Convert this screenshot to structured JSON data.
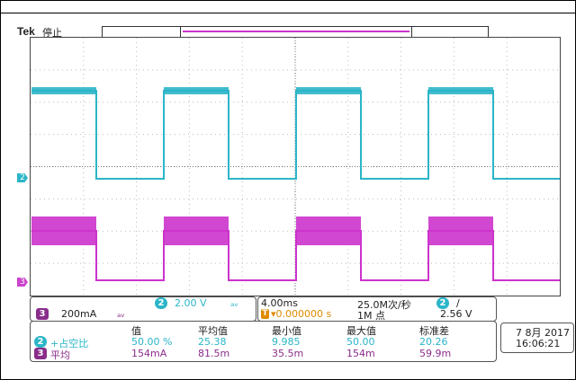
{
  "header": {
    "brand": "Tek",
    "status": "停止"
  },
  "markers": {
    "ch2": "2",
    "ch3": "3",
    "trigger": "T",
    "trigger_level_arrow": "◂"
  },
  "channels": {
    "ch2": {
      "id": "2",
      "scale": "2.00 V",
      "coupling_symbol": "ₐᵥ",
      "color": "#2bb5c8"
    },
    "ch3": {
      "id": "3",
      "scale": "200mA",
      "coupling_symbol": "ₐᵥ",
      "color": "#cc33cc"
    }
  },
  "timebase": {
    "scale": "4.00ms",
    "sample_rate": "25.0M次/秒",
    "delay": "▾0.000000 s",
    "record_length": "1M 点"
  },
  "trigger": {
    "source": "2",
    "slope": "∕",
    "level": "2.56 V"
  },
  "measurements": {
    "headers": [
      "值",
      "平均值",
      "最小值",
      "最大值",
      "标准差"
    ],
    "rows": [
      {
        "ch": "2",
        "name": "+占空比",
        "values": [
          "50.00 %",
          "25.38",
          "9.985",
          "50.00",
          "20.26"
        ]
      },
      {
        "ch": "3",
        "name": "平均",
        "values": [
          "154mA",
          "81.5m",
          "35.5m",
          "154m",
          "59.9m"
        ]
      }
    ]
  },
  "datetime": {
    "date": "7 8月 2017",
    "time": "16:06:21"
  },
  "colors": {
    "ch2": "#2bb5c8",
    "ch3": "#cc33cc",
    "trigger": "#e08a00"
  }
}
